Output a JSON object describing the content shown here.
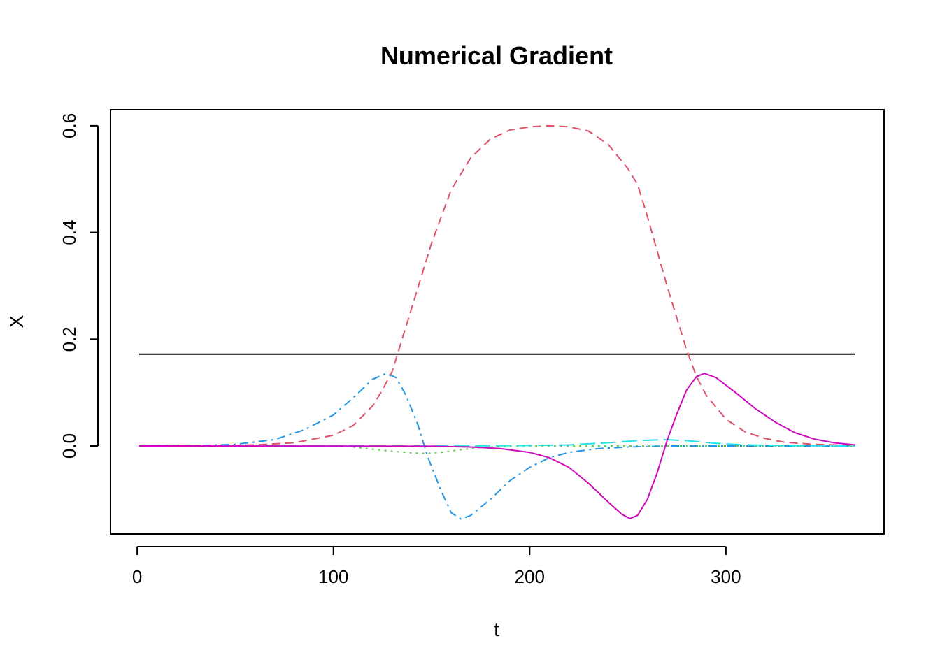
{
  "chart_data": {
    "type": "line",
    "title": "Numerical Gradient",
    "xlabel": "t",
    "ylabel": "X",
    "xlim": [
      -13.6,
      380.6
    ],
    "ylim": [
      -0.165,
      0.63
    ],
    "x_ticks": [
      0,
      100,
      200,
      300
    ],
    "x_tick_labels": [
      "0",
      "100",
      "200",
      "300"
    ],
    "y_ticks": [
      0.0,
      0.2,
      0.4,
      0.6
    ],
    "y_tick_labels": [
      "0.0",
      "0.2",
      "0.4",
      "0.6"
    ],
    "grid": false,
    "legend": "none",
    "series": [
      {
        "color": "#000000",
        "dash": "solid",
        "points": [
          [
            1,
            0.172
          ],
          [
            366,
            0.172
          ]
        ]
      },
      {
        "color": "#DF536B",
        "dash": "dashed",
        "points": [
          [
            1,
            0.0
          ],
          [
            40,
            0.0005
          ],
          [
            60,
            0.002
          ],
          [
            80,
            0.006
          ],
          [
            100,
            0.02
          ],
          [
            110,
            0.038
          ],
          [
            120,
            0.075
          ],
          [
            125,
            0.105
          ],
          [
            130,
            0.14
          ],
          [
            135,
            0.2
          ],
          [
            140,
            0.26
          ],
          [
            150,
            0.38
          ],
          [
            160,
            0.48
          ],
          [
            170,
            0.54
          ],
          [
            180,
            0.575
          ],
          [
            190,
            0.592
          ],
          [
            200,
            0.598
          ],
          [
            210,
            0.6
          ],
          [
            220,
            0.598
          ],
          [
            230,
            0.59
          ],
          [
            240,
            0.565
          ],
          [
            250,
            0.52
          ],
          [
            255,
            0.49
          ],
          [
            260,
            0.43
          ],
          [
            270,
            0.3
          ],
          [
            280,
            0.18
          ],
          [
            285,
            0.13
          ],
          [
            290,
            0.095
          ],
          [
            300,
            0.05
          ],
          [
            310,
            0.026
          ],
          [
            320,
            0.014
          ],
          [
            330,
            0.007
          ],
          [
            345,
            0.003
          ],
          [
            366,
            0.001
          ]
        ]
      },
      {
        "color": "#61D04F",
        "dash": "dotted",
        "points": [
          [
            1,
            0.0
          ],
          [
            100,
            0.0
          ],
          [
            110,
            -0.002
          ],
          [
            120,
            -0.006
          ],
          [
            130,
            -0.01
          ],
          [
            140,
            -0.013
          ],
          [
            147,
            -0.014
          ],
          [
            155,
            -0.012
          ],
          [
            165,
            -0.007
          ],
          [
            175,
            -0.003
          ],
          [
            185,
            -0.001
          ],
          [
            200,
            0.0
          ],
          [
            366,
            0.0
          ]
        ]
      },
      {
        "color": "#2297E6",
        "dash": "dotdash",
        "points": [
          [
            1,
            0.0
          ],
          [
            30,
            0.0005
          ],
          [
            50,
            0.003
          ],
          [
            70,
            0.012
          ],
          [
            85,
            0.03
          ],
          [
            100,
            0.058
          ],
          [
            110,
            0.09
          ],
          [
            120,
            0.125
          ],
          [
            127,
            0.136
          ],
          [
            132,
            0.128
          ],
          [
            137,
            0.095
          ],
          [
            143,
            0.04
          ],
          [
            148,
            -0.02
          ],
          [
            155,
            -0.085
          ],
          [
            160,
            -0.125
          ],
          [
            165,
            -0.137
          ],
          [
            170,
            -0.13
          ],
          [
            180,
            -0.1
          ],
          [
            190,
            -0.065
          ],
          [
            200,
            -0.04
          ],
          [
            210,
            -0.022
          ],
          [
            220,
            -0.012
          ],
          [
            235,
            -0.005
          ],
          [
            250,
            -0.002
          ],
          [
            270,
            0.0
          ],
          [
            366,
            0.0
          ]
        ]
      },
      {
        "color": "#28E2E5",
        "dash": "longdash",
        "points": [
          [
            1,
            0.0
          ],
          [
            170,
            0.0
          ],
          [
            200,
            0.001
          ],
          [
            220,
            0.002
          ],
          [
            240,
            0.006
          ],
          [
            255,
            0.01
          ],
          [
            268,
            0.012
          ],
          [
            280,
            0.01
          ],
          [
            295,
            0.005
          ],
          [
            310,
            0.002
          ],
          [
            330,
            0.001
          ],
          [
            366,
            0.0
          ]
        ]
      },
      {
        "color": "#CD0BBC",
        "dash": "solid",
        "points": [
          [
            1,
            0.0
          ],
          [
            150,
            -0.0005
          ],
          [
            170,
            -0.002
          ],
          [
            185,
            -0.005
          ],
          [
            200,
            -0.012
          ],
          [
            210,
            -0.022
          ],
          [
            220,
            -0.04
          ],
          [
            230,
            -0.07
          ],
          [
            240,
            -0.105
          ],
          [
            247,
            -0.128
          ],
          [
            251,
            -0.136
          ],
          [
            255,
            -0.13
          ],
          [
            260,
            -0.1
          ],
          [
            265,
            -0.05
          ],
          [
            270,
            0.01
          ],
          [
            275,
            0.06
          ],
          [
            280,
            0.105
          ],
          [
            285,
            0.13
          ],
          [
            289,
            0.136
          ],
          [
            295,
            0.128
          ],
          [
            305,
            0.1
          ],
          [
            315,
            0.07
          ],
          [
            325,
            0.045
          ],
          [
            335,
            0.025
          ],
          [
            345,
            0.013
          ],
          [
            355,
            0.006
          ],
          [
            366,
            0.002
          ]
        ]
      }
    ]
  }
}
